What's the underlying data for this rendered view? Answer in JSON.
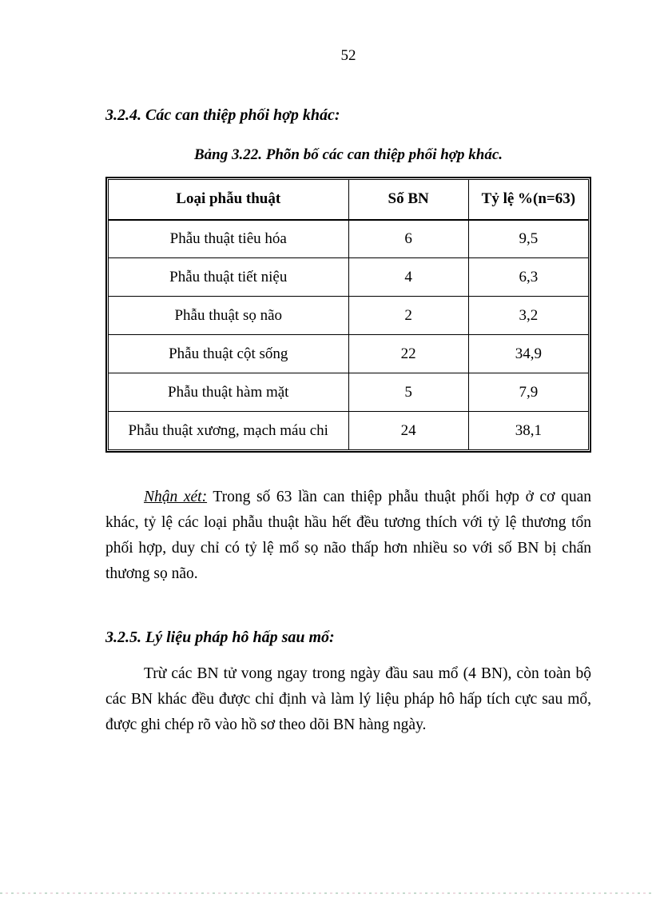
{
  "page": {
    "number": "52"
  },
  "section_324": {
    "heading": "3.2.4. Các can thiệp phối hợp khác:",
    "table_caption": "Bảng 3.22. Phõn bố các can thiệp phối hợp khác.",
    "table": {
      "columns": [
        "Loại phẫu thuật",
        "Số BN",
        "Tỷ lệ %(n=63)"
      ],
      "rows": [
        [
          "Phẫu thuật tiêu hóa",
          "6",
          "9,5"
        ],
        [
          "Phẫu thuật tiết niệu",
          "4",
          "6,3"
        ],
        [
          "Phẫu thuật sọ não",
          "2",
          "3,2"
        ],
        [
          "Phẫu thuật cột sống",
          "22",
          "34,9"
        ],
        [
          "Phẫu thuật hàm mặt",
          "5",
          "7,9"
        ],
        [
          "Phẫu thuật xương, mạch máu chi",
          "24",
          "38,1"
        ]
      ]
    },
    "note_label": "Nhận xét:",
    "note_text": "Trong số 63 lần can thiệp phẫu thuật phối hợp ở cơ quan khác, tỷ lệ các loại phẫu thuật hầu hết đều tương thích với tỷ lệ thương tổn phối hợp, duy chỉ có tỷ lệ mổ sọ não thấp hơn nhiều so với số BN bị chấn thương sọ não."
  },
  "section_325": {
    "heading": "3.2.5. Lý liệu pháp hô hấp sau mổ:",
    "paragraph": "Trừ các BN tử vong ngay trong ngày đầu sau mổ (4 BN), còn toàn bộ các BN khác đều được chỉ định và làm lý liệu pháp hô hấp tích cực sau mổ, được ghi chép rõ vào hồ sơ theo dõi BN hàng ngày."
  },
  "colors": {
    "text": "#000000",
    "table_border": "#000000",
    "page_background": "#ffffff"
  }
}
